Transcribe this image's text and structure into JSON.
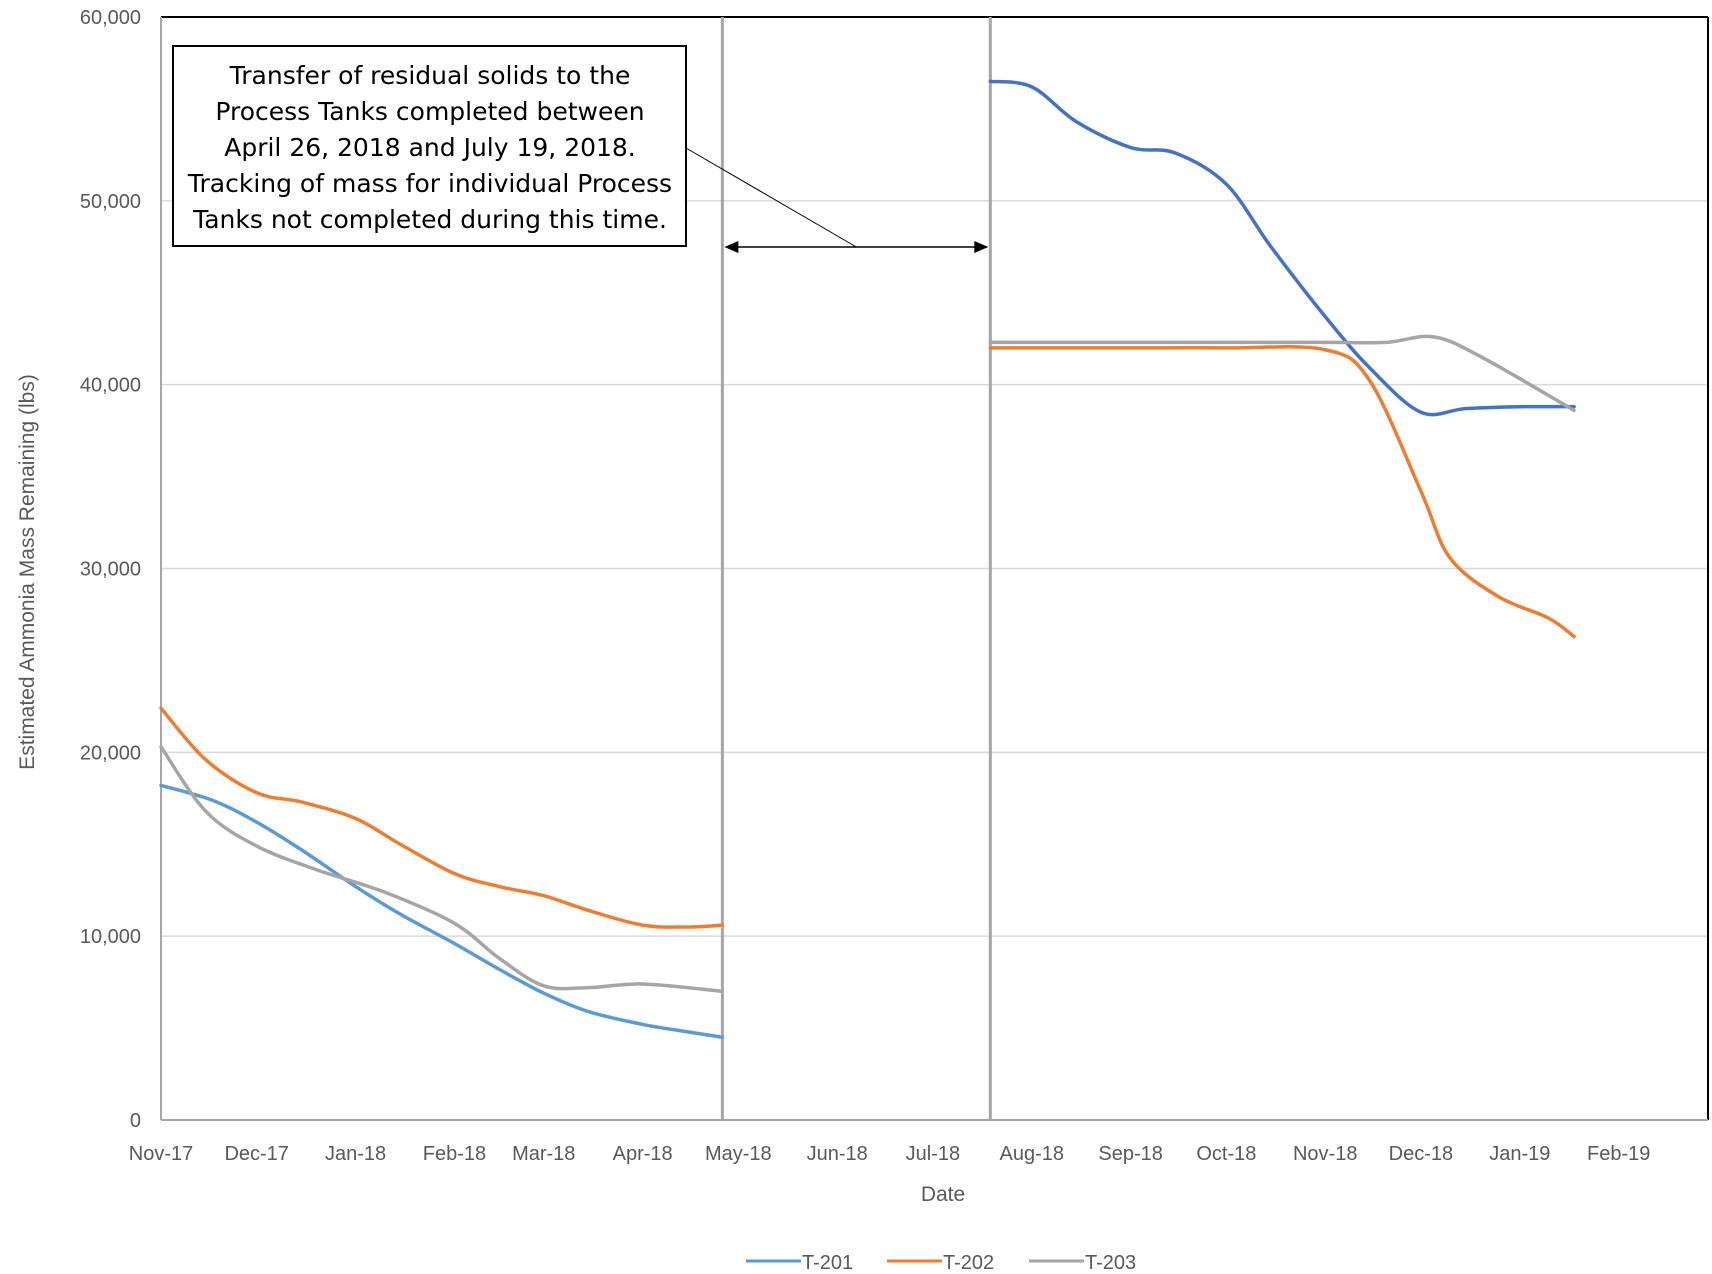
{
  "chart_data": {
    "type": "line",
    "xlabel": "Date",
    "ylabel": "Estimated Ammonia Mass Remaining (lbs)",
    "x_tick_labels": [
      "Nov-17",
      "Dec-17",
      "Jan-18",
      "Feb-18",
      "Mar-18",
      "Apr-18",
      "May-18",
      "Jun-18",
      "Jul-18",
      "Aug-18",
      "Sep-18",
      "Oct-18",
      "Nov-18",
      "Dec-18",
      "Jan-19",
      "Feb-19"
    ],
    "y_tick_labels": [
      "0",
      "10,000",
      "20,000",
      "30,000",
      "40,000",
      "50,000",
      "60,000"
    ],
    "ylim": [
      0,
      60000
    ],
    "xlim": [
      "2017-11-01",
      "2019-03-01"
    ],
    "grid": "horizontal",
    "legend_position": "bottom",
    "annotation": {
      "lines": [
        "Transfer of residual solids to the",
        "Process Tanks completed between",
        "April 26, 2018 and July 19, 2018.",
        "Tracking of mass for individual Process",
        "Tanks not completed during this time."
      ],
      "gap_start": "2018-04-26",
      "gap_end": "2018-07-19"
    },
    "series": [
      {
        "name": "T-201",
        "color": "#5B9BD5",
        "points": [
          [
            "2017-11-01",
            18200
          ],
          [
            "2017-11-17",
            17400
          ],
          [
            "2017-12-01",
            16200
          ],
          [
            "2017-12-15",
            14700
          ],
          [
            "2018-01-01",
            12700
          ],
          [
            "2018-01-15",
            11200
          ],
          [
            "2018-02-01",
            9600
          ],
          [
            "2018-02-15",
            8200
          ],
          [
            "2018-03-01",
            6900
          ],
          [
            "2018-03-15",
            5900
          ],
          [
            "2018-04-01",
            5200
          ],
          [
            "2018-04-15",
            4800
          ],
          [
            "2018-04-26",
            4500
          ]
        ]
      },
      {
        "name": "T-202",
        "color": "#ED7D31",
        "points": [
          [
            "2017-11-01",
            22400
          ],
          [
            "2017-11-15",
            19600
          ],
          [
            "2017-12-01",
            17800
          ],
          [
            "2017-12-15",
            17300
          ],
          [
            "2018-01-01",
            16400
          ],
          [
            "2018-01-15",
            15000
          ],
          [
            "2018-02-01",
            13400
          ],
          [
            "2018-02-15",
            12700
          ],
          [
            "2018-03-01",
            12200
          ],
          [
            "2018-03-15",
            11400
          ],
          [
            "2018-04-01",
            10600
          ],
          [
            "2018-04-15",
            10500
          ],
          [
            "2018-04-26",
            10600
          ]
        ]
      },
      {
        "name": "T-203",
        "color": "#A5A5A5",
        "points": [
          [
            "2017-11-01",
            20300
          ],
          [
            "2017-11-15",
            16800
          ],
          [
            "2017-12-01",
            14900
          ],
          [
            "2017-12-20",
            13600
          ],
          [
            "2018-01-10",
            12400
          ],
          [
            "2018-02-01",
            10700
          ],
          [
            "2018-02-15",
            8800
          ],
          [
            "2018-03-01",
            7300
          ],
          [
            "2018-03-15",
            7200
          ],
          [
            "2018-04-01",
            7400
          ],
          [
            "2018-04-26",
            7000
          ]
        ]
      },
      {
        "name": "",
        "color": "#4472C4",
        "points": [
          [
            "2018-07-19",
            56500
          ],
          [
            "2018-08-01",
            56200
          ],
          [
            "2018-08-15",
            54300
          ],
          [
            "2018-09-01",
            52900
          ],
          [
            "2018-09-15",
            52600
          ],
          [
            "2018-10-01",
            50900
          ],
          [
            "2018-10-15",
            47500
          ],
          [
            "2018-11-01",
            43700
          ],
          [
            "2018-11-15",
            40900
          ],
          [
            "2018-12-01",
            38500
          ],
          [
            "2018-12-15",
            38700
          ],
          [
            "2019-01-01",
            38800
          ],
          [
            "2019-01-18",
            38800
          ]
        ]
      },
      {
        "name": "",
        "color": "#ED7D31",
        "points": [
          [
            "2018-07-19",
            42000
          ],
          [
            "2018-09-01",
            42000
          ],
          [
            "2018-10-01",
            42000
          ],
          [
            "2018-11-01",
            41900
          ],
          [
            "2018-11-15",
            40200
          ],
          [
            "2018-12-01",
            34200
          ],
          [
            "2018-12-10",
            30600
          ],
          [
            "2018-12-25",
            28500
          ],
          [
            "2019-01-10",
            27300
          ],
          [
            "2019-01-18",
            26300
          ]
        ]
      },
      {
        "name": "",
        "color": "#A5A5A5",
        "points": [
          [
            "2018-07-19",
            42300
          ],
          [
            "2018-09-01",
            42300
          ],
          [
            "2018-10-01",
            42300
          ],
          [
            "2018-11-01",
            42300
          ],
          [
            "2018-11-20",
            42300
          ],
          [
            "2018-12-05",
            42600
          ],
          [
            "2018-12-20",
            41500
          ],
          [
            "2019-01-18",
            38600
          ]
        ]
      }
    ]
  },
  "legend": {
    "items": [
      {
        "label": "T-201",
        "color": "#5B9BD5"
      },
      {
        "label": "T-202",
        "color": "#ED7D31"
      },
      {
        "label": "T-203",
        "color": "#A5A5A5"
      }
    ]
  }
}
